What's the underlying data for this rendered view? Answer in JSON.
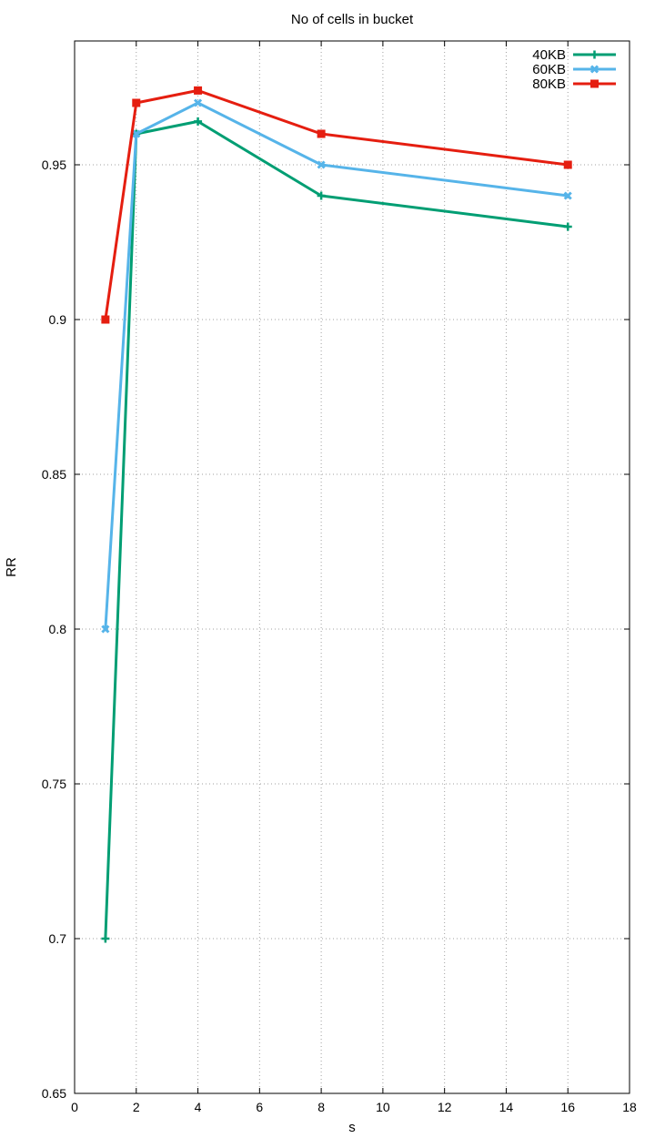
{
  "chart_data": {
    "type": "line",
    "title": "No of cells in bucket",
    "xlabel": "s",
    "ylabel": "RR",
    "xlim": [
      0,
      18
    ],
    "ylim": [
      0.65,
      0.99
    ],
    "xticks": [
      "0",
      "2",
      "4",
      "6",
      "8",
      "10",
      "12",
      "14",
      "16",
      "18"
    ],
    "yticks": [
      "0.65",
      "0.7",
      "0.75",
      "0.8",
      "0.85",
      "0.9",
      "0.95"
    ],
    "grid": true,
    "legend_position": "top-right",
    "series": [
      {
        "name": "40KB",
        "color": "#009e73",
        "marker": "plus",
        "x": [
          1,
          2,
          4,
          8,
          16
        ],
        "y": [
          0.7,
          0.96,
          0.964,
          0.94,
          0.93
        ]
      },
      {
        "name": "60KB",
        "color": "#56b4e9",
        "marker": "cross",
        "x": [
          1,
          2,
          4,
          8,
          16
        ],
        "y": [
          0.8,
          0.96,
          0.97,
          0.95,
          0.94
        ]
      },
      {
        "name": "80KB",
        "color": "#e51e10",
        "marker": "square",
        "x": [
          1,
          2,
          4,
          8,
          16
        ],
        "y": [
          0.9,
          0.97,
          0.974,
          0.96,
          0.95
        ]
      }
    ]
  }
}
